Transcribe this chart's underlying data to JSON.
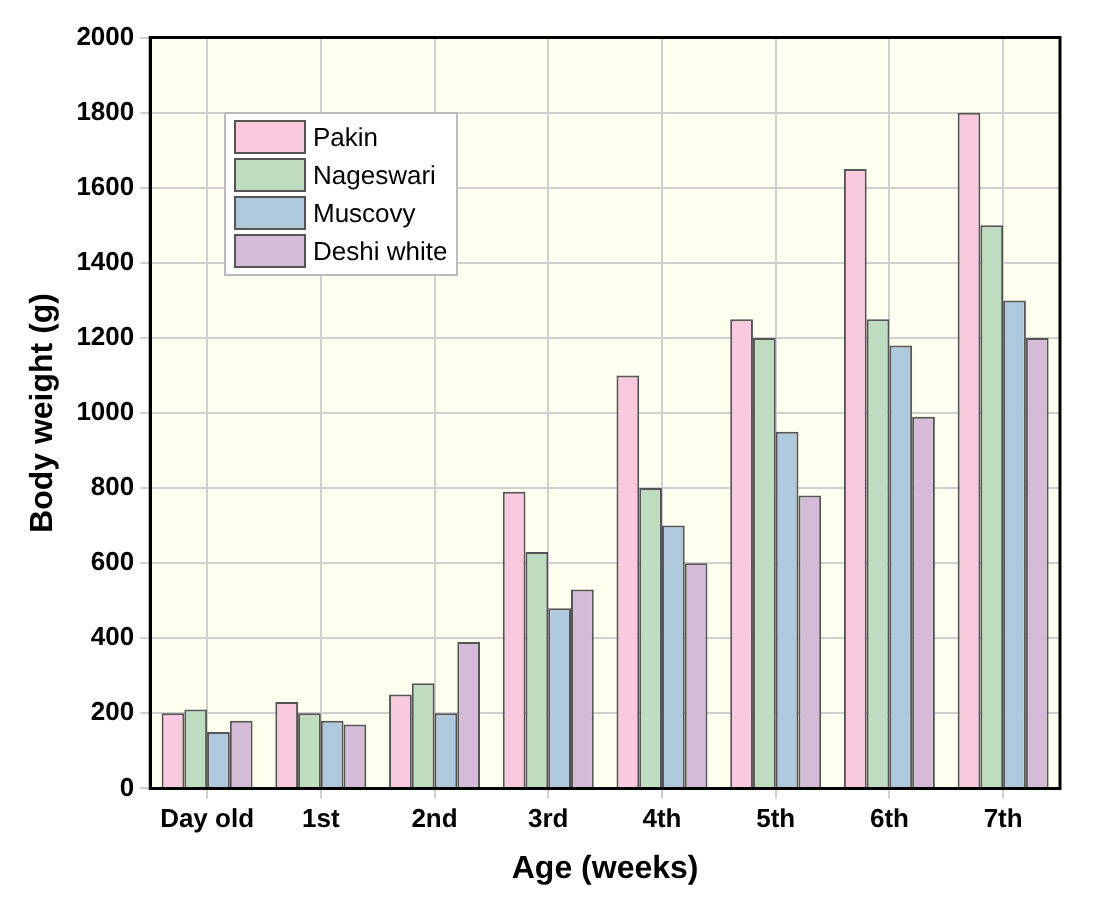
{
  "chart_data": {
    "type": "bar",
    "xlabel": "Age (weeks)",
    "ylabel": "Body weight (g)",
    "categories": [
      "Day old",
      "1st",
      "2nd",
      "3rd",
      "4th",
      "5th",
      "6th",
      "7th"
    ],
    "series": [
      {
        "name": "Pakin",
        "color": "#f9c9de",
        "values": [
          200,
          230,
          250,
          790,
          1100,
          1250,
          1650,
          1800
        ]
      },
      {
        "name": "Nageswari",
        "color": "#c0dcc0",
        "values": [
          210,
          200,
          280,
          630,
          800,
          1200,
          1250,
          1500
        ]
      },
      {
        "name": "Muscovy",
        "color": "#b0c8dc",
        "values": [
          150,
          180,
          200,
          480,
          700,
          950,
          1180,
          1300
        ]
      },
      {
        "name": "Deshi white",
        "color": "#d4bcd8",
        "values": [
          180,
          170,
          390,
          530,
          600,
          780,
          990,
          1200
        ]
      }
    ],
    "ylim": [
      0,
      2000
    ],
    "yticks": [
      0,
      200,
      400,
      600,
      800,
      1000,
      1200,
      1400,
      1600,
      1800,
      2000
    ],
    "grid": true,
    "legend": "top left"
  }
}
